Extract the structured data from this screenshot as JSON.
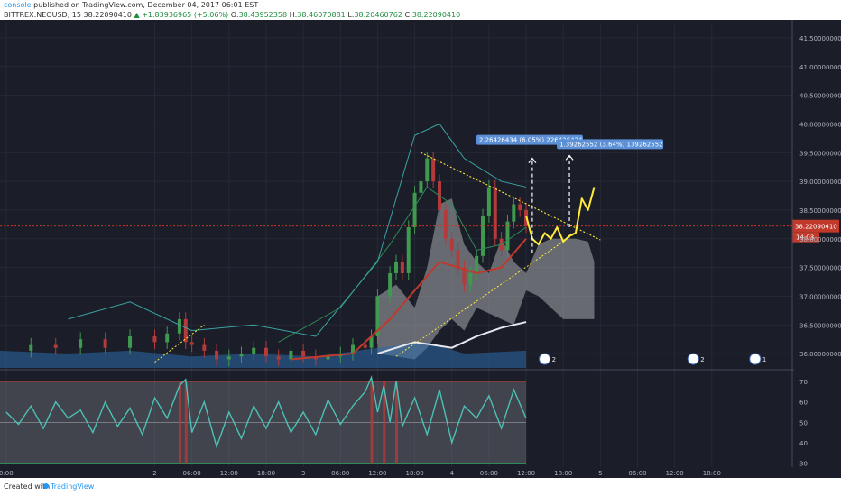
{
  "header": {
    "user": "console",
    "published_text": "published on TradingView.com, December 04, 2017 06:01 EST",
    "symbol_line": "BITTREX:NEOUSD, 15",
    "last": "38.22090410",
    "change_arrow": "▲",
    "change": "+1.83936965 (+5.06%)",
    "ohlc": {
      "o_label": "O:",
      "o": "38.43952358",
      "h_label": "H:",
      "h": "38.46070881",
      "l_label": "L:",
      "l": "38.20460762",
      "c_label": "C:",
      "c": "38.22090410"
    }
  },
  "footer": {
    "created_with": "Created with",
    "brand": "TradingView"
  },
  "colors": {
    "background": "#1b1d28",
    "up": "#3f9a4f",
    "down": "#b53a3a",
    "price_line": "#c0392b",
    "rsi_line": "#4dc0b5",
    "projection": "#ffeb3b",
    "axis_text": "#b2b5be"
  },
  "chart_data": [
    {
      "type": "candlestick",
      "title": "BITTREX:NEOUSD, 15",
      "ylim": [
        35.75,
        41.75
      ],
      "y_ticks": [
        "41.50000000",
        "41.00000000",
        "40.50000000",
        "40.00000000",
        "39.50000000",
        "39.00000000",
        "38.50000000",
        "38.00000000",
        "37.50000000",
        "37.00000000",
        "36.50000000",
        "36.00000000"
      ],
      "y_tick_values": [
        41.5,
        41.0,
        40.5,
        40.0,
        39.5,
        39.0,
        38.5,
        38.0,
        37.5,
        37.0,
        36.5,
        36.0
      ],
      "x_ticks": [
        "0:00",
        "2",
        "06:00",
        "12:00",
        "18:00",
        "3",
        "06:00",
        "12:00",
        "18:00",
        "4",
        "06:00",
        "12:00",
        "18:00",
        "5",
        "06:00",
        "12:00",
        "18:00"
      ],
      "x_tick_hours": [
        0,
        24,
        30,
        36,
        42,
        48,
        54,
        60,
        66,
        72,
        78,
        84,
        90,
        96,
        102,
        108,
        114
      ],
      "close_series": {
        "x_hours": [
          0,
          4,
          8,
          12,
          16,
          20,
          24,
          26,
          28,
          29,
          30,
          32,
          34,
          36,
          38,
          40,
          42,
          44,
          46,
          48,
          50,
          52,
          54,
          56,
          58,
          59,
          60,
          62,
          63,
          64,
          65,
          66,
          67,
          68,
          69,
          70,
          71,
          72,
          73,
          74,
          75,
          76,
          77,
          78,
          79,
          80,
          81,
          82,
          83,
          84
        ],
        "y": [
          36.05,
          36.15,
          36.1,
          36.25,
          36.1,
          36.3,
          36.2,
          36.35,
          36.6,
          36.2,
          36.15,
          36.05,
          35.9,
          35.95,
          36.0,
          36.1,
          35.95,
          35.9,
          36.05,
          35.95,
          35.9,
          35.95,
          36.0,
          36.15,
          36.1,
          36.3,
          37.0,
          37.4,
          37.6,
          37.4,
          38.2,
          38.8,
          39.0,
          39.4,
          39.0,
          38.5,
          38.0,
          37.8,
          37.5,
          37.2,
          37.4,
          37.7,
          38.4,
          38.9,
          38.0,
          37.8,
          38.3,
          38.6,
          38.5,
          38.22
        ]
      },
      "last_price_label": "38.22090410",
      "countdown_label": "14:03",
      "annotations": [
        {
          "text": "2.26426434 (6.05%) 226426434",
          "from_hours": 85,
          "from_price": 37.75,
          "to_price": 39.4
        },
        {
          "text": "1.39262552 (3.64%) 139262552",
          "from_hours": 91,
          "from_price": 38.2,
          "to_price": 39.45
        }
      ],
      "triangle": {
        "upper": {
          "x_hours": [
            67,
            96
          ],
          "y": [
            39.5,
            37.98
          ]
        },
        "lower": {
          "x_hours": [
            63,
            92
          ],
          "y": [
            35.95,
            38.1
          ]
        }
      },
      "projection": {
        "x_hours": [
          84,
          85,
          86,
          87,
          88,
          89,
          90,
          91,
          92,
          93,
          94,
          95
        ],
        "y": [
          38.4,
          38.0,
          37.9,
          38.1,
          38.0,
          38.2,
          37.95,
          38.05,
          38.1,
          38.7,
          38.5,
          38.9
        ]
      },
      "event_badges": [
        {
          "x_hours": 87,
          "count": "2"
        },
        {
          "x_hours": 111,
          "count": "2"
        },
        {
          "x_hours": 121,
          "count": "1"
        }
      ]
    },
    {
      "type": "line",
      "title": "RSI",
      "ylim": [
        28,
        74
      ],
      "y_ticks": [
        "70",
        "60",
        "50",
        "40",
        "30"
      ],
      "y_tick_values": [
        70,
        60,
        50,
        40,
        30
      ],
      "bands": [
        30,
        70
      ],
      "x_hours": [
        0,
        2,
        4,
        6,
        8,
        10,
        12,
        14,
        16,
        18,
        20,
        22,
        24,
        26,
        28,
        29,
        30,
        32,
        34,
        36,
        38,
        40,
        42,
        44,
        46,
        48,
        50,
        52,
        54,
        56,
        58,
        59,
        60,
        61,
        62,
        63,
        64,
        66,
        68,
        70,
        72,
        74,
        76,
        78,
        80,
        82,
        84
      ],
      "y": [
        55,
        49,
        58,
        47,
        60,
        52,
        56,
        45,
        60,
        48,
        57,
        44,
        62,
        52,
        68,
        71,
        45,
        60,
        38,
        55,
        42,
        58,
        47,
        60,
        45,
        55,
        44,
        61,
        49,
        58,
        65,
        72,
        55,
        68,
        50,
        70,
        48,
        62,
        44,
        66,
        40,
        58,
        52,
        63,
        47,
        66,
        52
      ]
    }
  ]
}
